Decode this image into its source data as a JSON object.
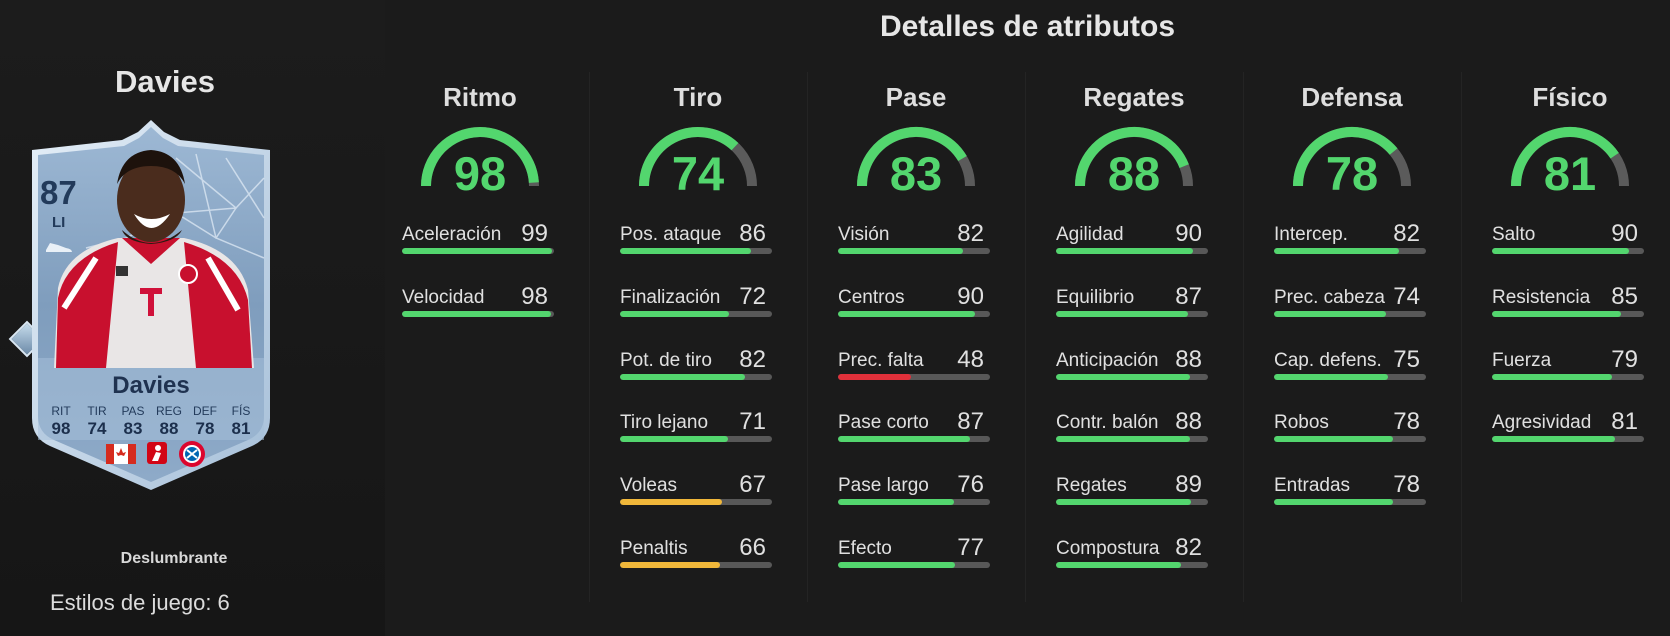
{
  "page": {
    "title": "Detalles de atributos"
  },
  "player": {
    "title": "Davies",
    "subtitle": "Deslumbrante",
    "playstyles": "Estilos de juego: 6",
    "card": {
      "rating": "87",
      "position": "LI",
      "name": "Davies",
      "stats": [
        {
          "label": "RIT",
          "value": "98"
        },
        {
          "label": "TIR",
          "value": "74"
        },
        {
          "label": "PAS",
          "value": "83"
        },
        {
          "label": "REG",
          "value": "88"
        },
        {
          "label": "DEF",
          "value": "78"
        },
        {
          "label": "FÍS",
          "value": "81"
        }
      ],
      "badges": [
        "canada-flag-icon",
        "bundesliga-logo-icon",
        "bayern-crest-icon"
      ],
      "colors": {
        "frame": "#b8cfe4",
        "inner": "#7f9dbd",
        "accent": "#223a5a"
      }
    }
  },
  "colors": {
    "high": "#53d66e",
    "mid": "#f0b73a",
    "low": "#e0303a",
    "track": "#585858"
  },
  "categories": [
    {
      "name": "Ritmo",
      "value": 98,
      "attributes": [
        {
          "name": "Aceleración",
          "value": 99
        },
        {
          "name": "Velocidad",
          "value": 98
        }
      ]
    },
    {
      "name": "Tiro",
      "value": 74,
      "attributes": [
        {
          "name": "Pos. ataque",
          "value": 86
        },
        {
          "name": "Finalización",
          "value": 72
        },
        {
          "name": "Pot. de tiro",
          "value": 82
        },
        {
          "name": "Tiro lejano",
          "value": 71
        },
        {
          "name": "Voleas",
          "value": 67
        },
        {
          "name": "Penaltis",
          "value": 66
        }
      ]
    },
    {
      "name": "Pase",
      "value": 83,
      "attributes": [
        {
          "name": "Visión",
          "value": 82
        },
        {
          "name": "Centros",
          "value": 90
        },
        {
          "name": "Prec. falta",
          "value": 48
        },
        {
          "name": "Pase corto",
          "value": 87
        },
        {
          "name": "Pase largo",
          "value": 76
        },
        {
          "name": "Efecto",
          "value": 77
        }
      ]
    },
    {
      "name": "Regates",
      "value": 88,
      "attributes": [
        {
          "name": "Agilidad",
          "value": 90
        },
        {
          "name": "Equilibrio",
          "value": 87
        },
        {
          "name": "Anticipación",
          "value": 88
        },
        {
          "name": "Contr. balón",
          "value": 88
        },
        {
          "name": "Regates",
          "value": 89
        },
        {
          "name": "Compostura",
          "value": 82
        }
      ]
    },
    {
      "name": "Defensa",
      "value": 78,
      "attributes": [
        {
          "name": "Intercep.",
          "value": 82
        },
        {
          "name": "Prec. cabeza",
          "value": 74
        },
        {
          "name": "Cap. defens.",
          "value": 75
        },
        {
          "name": "Robos",
          "value": 78
        },
        {
          "name": "Entradas",
          "value": 78
        }
      ]
    },
    {
      "name": "Físico",
      "value": 81,
      "attributes": [
        {
          "name": "Salto",
          "value": 90
        },
        {
          "name": "Resistencia",
          "value": 85
        },
        {
          "name": "Fuerza",
          "value": 79
        },
        {
          "name": "Agresividad",
          "value": 81
        }
      ]
    }
  ]
}
